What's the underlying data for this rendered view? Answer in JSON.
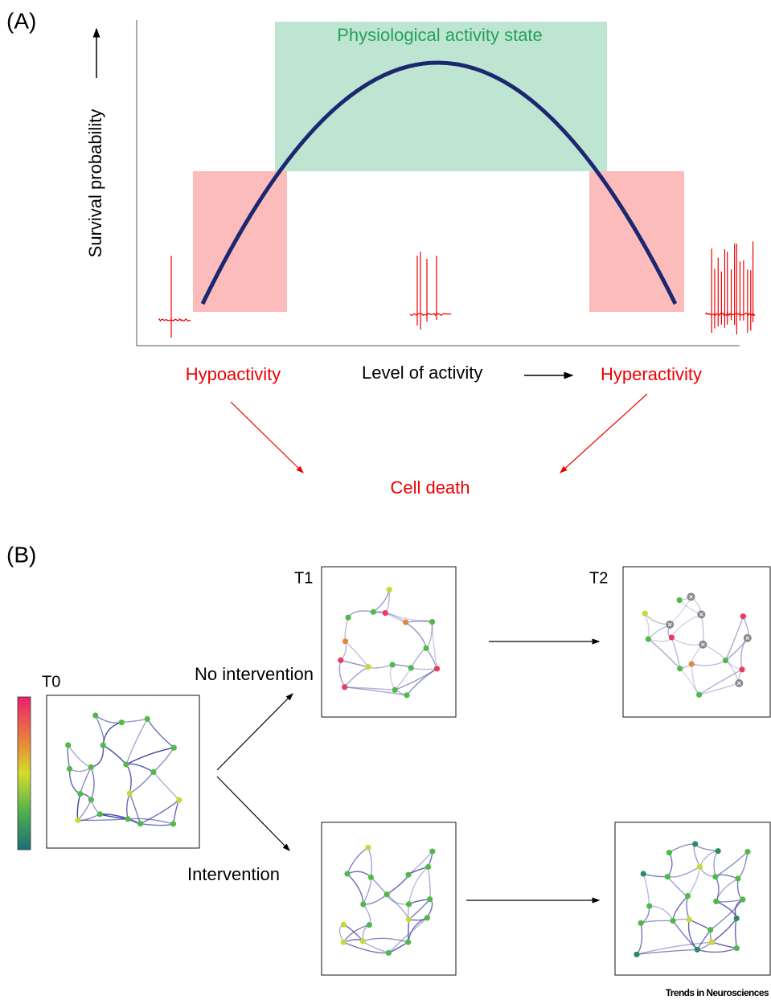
{
  "panel_a": {
    "label": "(A)",
    "region_label": "Physiological activity state",
    "y_axis_label": "Survival probability",
    "x_axis_label": "Level of activity",
    "left_label": "Hypoactivity",
    "right_label": "Hyperactivity",
    "outcome": "Cell death"
  },
  "panel_b": {
    "label": "(B)",
    "timepoints": [
      "T0",
      "T1",
      "T2"
    ],
    "branches": [
      "No intervention",
      "Intervention"
    ]
  },
  "footer": "Trends in Neurosciences"
}
